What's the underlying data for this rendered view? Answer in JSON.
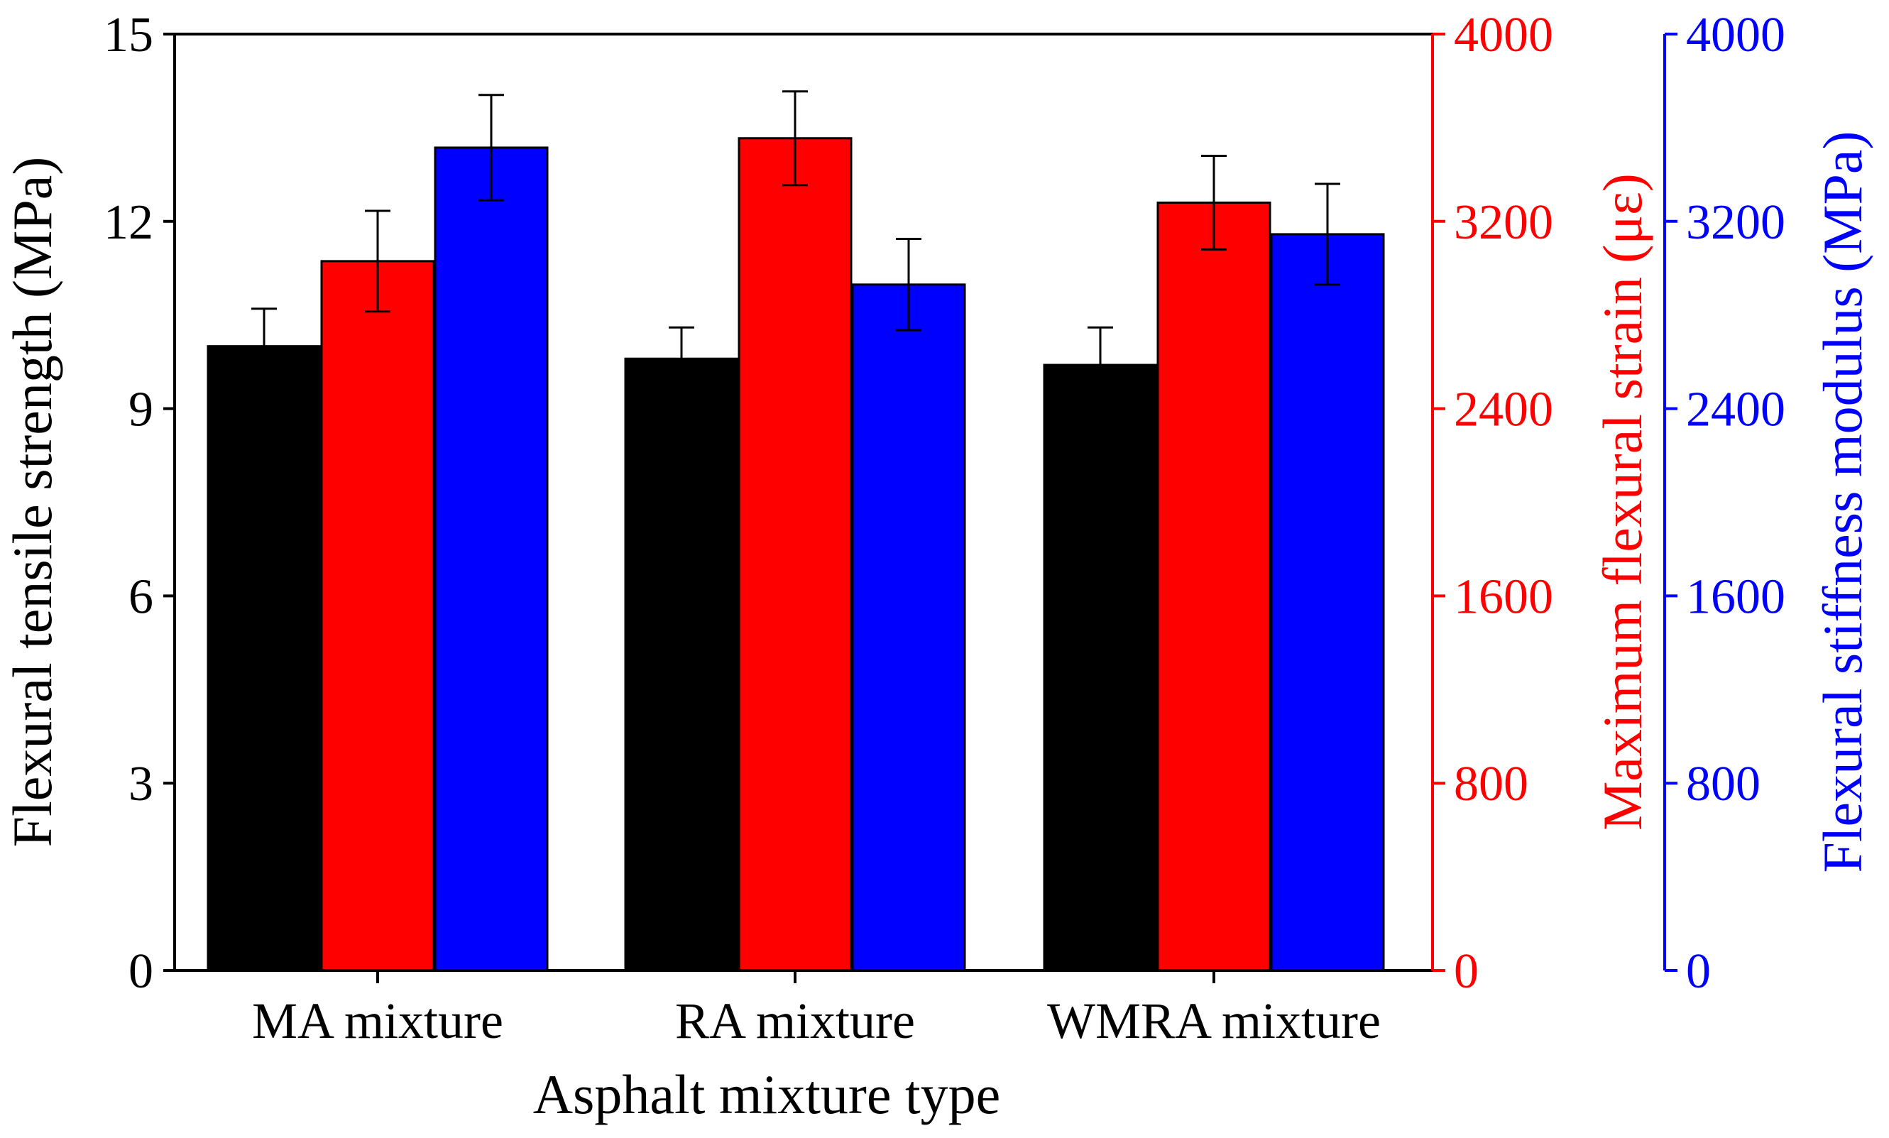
{
  "chart_data": {
    "type": "bar",
    "xlabel": "Asphalt mixture type",
    "categories": [
      "MA mixture",
      "RA mixture",
      "WMRA mixture"
    ],
    "axes": {
      "left": {
        "label": "Flexural tensile strength (MPa)",
        "ylim": [
          0,
          15
        ],
        "ticks": [
          0,
          3,
          6,
          9,
          12,
          15
        ],
        "color": "#000000"
      },
      "right1": {
        "label": "Maximum flexural strain (με)",
        "ylim": [
          0,
          4000
        ],
        "ticks": [
          0,
          800,
          1600,
          2400,
          3200,
          4000
        ],
        "color": "#ff0000"
      },
      "right2": {
        "label": "Flexural stiffness modulus (MPa)",
        "ylim": [
          0,
          4000
        ],
        "ticks": [
          0,
          800,
          1600,
          2400,
          3200,
          4000
        ],
        "color": "#0000ff"
      }
    },
    "series": [
      {
        "name": "Flexural tensile strength",
        "axis": "left",
        "color": "#000000",
        "values": [
          10.0,
          9.8,
          9.7
        ],
        "errors": [
          0.6,
          0.5,
          0.6
        ]
      },
      {
        "name": "Maximum flexural strain",
        "axis": "right1",
        "color": "#ff0000",
        "values": [
          3030,
          3555,
          3280
        ],
        "errors": [
          215,
          200,
          200
        ]
      },
      {
        "name": "Flexural stiffness modulus",
        "axis": "right2",
        "color": "#0000ff",
        "values": [
          3515,
          2930,
          3145
        ],
        "errors": [
          225,
          195,
          215
        ]
      }
    ]
  }
}
